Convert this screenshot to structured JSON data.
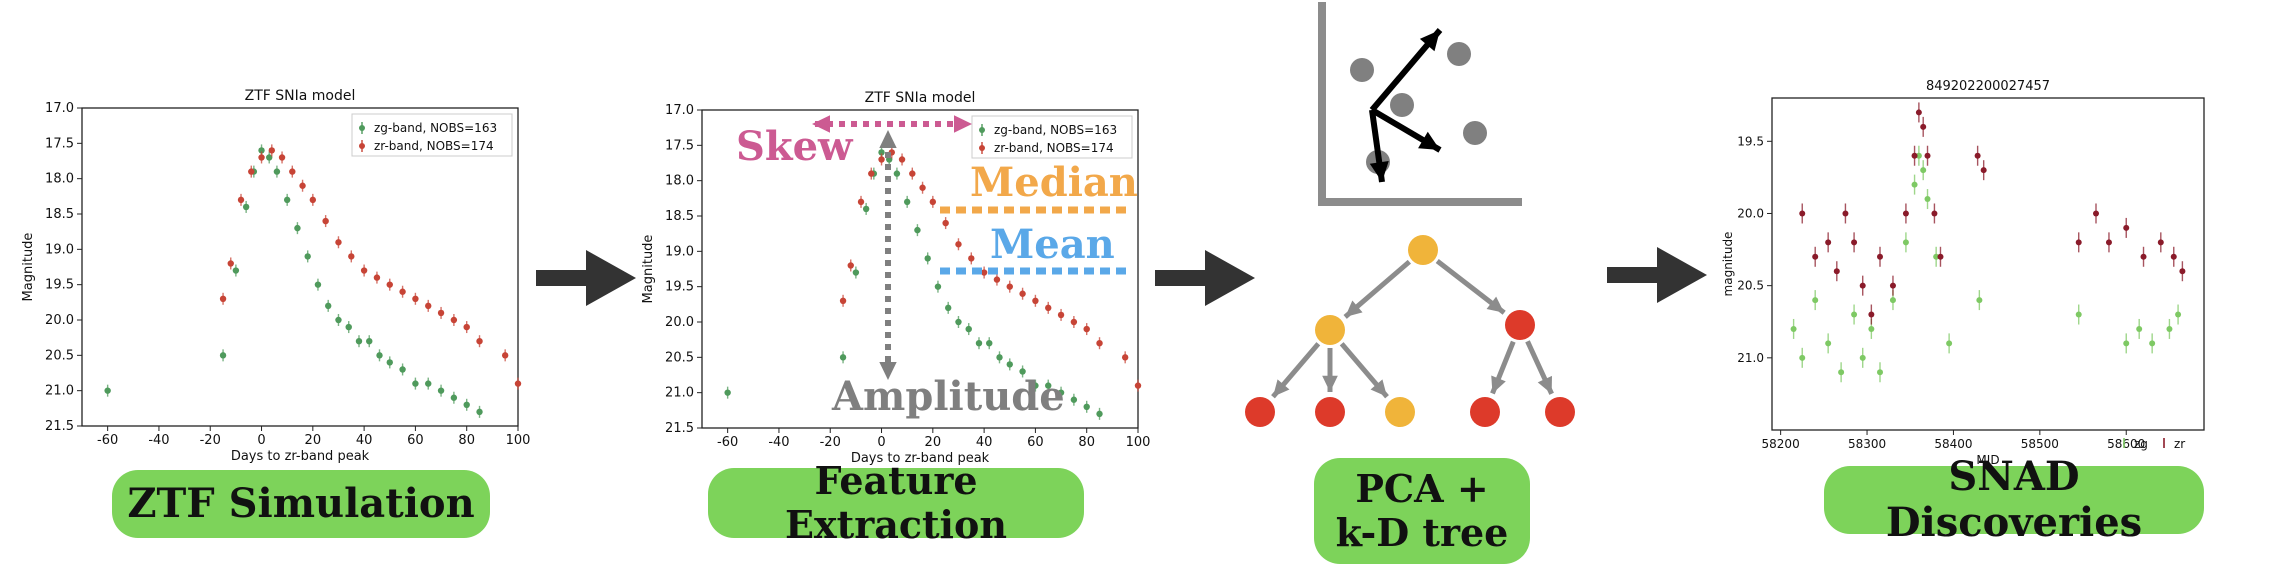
{
  "colors": {
    "green_band": "#4f9a5c",
    "red_band": "#c74436",
    "dark_red": "#8a1b2a",
    "light_green": "#7ec964",
    "skew": "#cc5a92",
    "median": "#f2a84a",
    "mean": "#5aa8e8",
    "amplitude": "#7f7f7f",
    "pill_green": "#7dd35a",
    "node_yellow": "#f0b43a",
    "node_red": "#dd3a2a",
    "arrow_dark": "#333333",
    "gray_line": "#8c8c8c"
  },
  "steps": {
    "simulation_label": "ZTF Simulation",
    "extraction_label": "Feature Extraction",
    "pca_label_line1": "PCA +",
    "pca_label_line2": "k-D tree",
    "snad_label": "SNAD Discoveries"
  },
  "features": {
    "skew": "Skew",
    "median": "Median",
    "mean": "Mean",
    "amplitude": "Amplitude"
  },
  "icons": [
    "right-arrow-icon",
    "scatter-pca-icon",
    "kd-tree-icon"
  ],
  "chart_data": [
    {
      "type": "scatter",
      "title": "ZTF SNIa model",
      "xlabel": "Days to zr-band peak",
      "ylabel": "Magnitude",
      "xlim": [
        -70,
        100
      ],
      "ylim": [
        21.5,
        17.0
      ],
      "y_inverted": true,
      "xticks": [
        -60,
        -40,
        -20,
        0,
        20,
        40,
        60,
        80,
        100
      ],
      "yticks": [
        17.0,
        17.5,
        18.0,
        18.5,
        19.0,
        19.5,
        20.0,
        20.5,
        21.0,
        21.5
      ],
      "legend": "top-right",
      "error_bars": true,
      "series": [
        {
          "name": "zg-band, NOBS=163",
          "color": "#4f9a5c",
          "x": [
            -60,
            -15,
            -10,
            -6,
            -3,
            0,
            3,
            6,
            10,
            14,
            18,
            22,
            26,
            30,
            34,
            38,
            42,
            46,
            50,
            55,
            60,
            65,
            70,
            75,
            80,
            85
          ],
          "y": [
            21.0,
            20.5,
            19.3,
            18.4,
            17.9,
            17.6,
            17.7,
            17.9,
            18.3,
            18.7,
            19.1,
            19.5,
            19.8,
            20.0,
            20.1,
            20.3,
            20.3,
            20.5,
            20.6,
            20.7,
            20.9,
            20.9,
            21.0,
            21.1,
            21.2,
            21.3
          ]
        },
        {
          "name": "zr-band, NOBS=174",
          "color": "#c74436",
          "x": [
            -15,
            -12,
            -8,
            -4,
            0,
            4,
            8,
            12,
            16,
            20,
            25,
            30,
            35,
            40,
            45,
            50,
            55,
            60,
            65,
            70,
            75,
            80,
            85,
            95,
            100
          ],
          "y": [
            19.7,
            19.2,
            18.3,
            17.9,
            17.7,
            17.6,
            17.7,
            17.9,
            18.1,
            18.3,
            18.6,
            18.9,
            19.1,
            19.3,
            19.4,
            19.5,
            19.6,
            19.7,
            19.8,
            19.9,
            20.0,
            20.1,
            20.3,
            20.5,
            20.9
          ]
        }
      ]
    },
    {
      "type": "scatter",
      "title": "ZTF SNIa model",
      "xlabel": "Days to zr-band peak",
      "ylabel": "Magnitude",
      "xlim": [
        -70,
        100
      ],
      "ylim": [
        21.5,
        17.0
      ],
      "y_inverted": true,
      "xticks": [
        -60,
        -40,
        -20,
        0,
        20,
        40,
        60,
        80,
        100
      ],
      "yticks": [
        17.0,
        17.5,
        18.0,
        18.5,
        19.0,
        19.5,
        20.0,
        20.5,
        21.0,
        21.5
      ],
      "legend": "top-right",
      "error_bars": true,
      "annotations": [
        "Skew",
        "Median",
        "Mean",
        "Amplitude"
      ],
      "series": [
        {
          "name": "zg-band, NOBS=163",
          "color": "#4f9a5c",
          "x": [
            -60,
            -15,
            -10,
            -6,
            -3,
            0,
            3,
            6,
            10,
            14,
            18,
            22,
            26,
            30,
            34,
            38,
            42,
            46,
            50,
            55,
            60,
            65,
            70,
            75,
            80,
            85
          ],
          "y": [
            21.0,
            20.5,
            19.3,
            18.4,
            17.9,
            17.6,
            17.7,
            17.9,
            18.3,
            18.7,
            19.1,
            19.5,
            19.8,
            20.0,
            20.1,
            20.3,
            20.3,
            20.5,
            20.6,
            20.7,
            20.9,
            20.9,
            21.0,
            21.1,
            21.2,
            21.3
          ]
        },
        {
          "name": "zr-band, NOBS=174",
          "color": "#c74436",
          "x": [
            -15,
            -12,
            -8,
            -4,
            0,
            4,
            8,
            12,
            16,
            20,
            25,
            30,
            35,
            40,
            45,
            50,
            55,
            60,
            65,
            70,
            75,
            80,
            85,
            95,
            100
          ],
          "y": [
            19.7,
            19.2,
            18.3,
            17.9,
            17.7,
            17.6,
            17.7,
            17.9,
            18.1,
            18.3,
            18.6,
            18.9,
            19.1,
            19.3,
            19.4,
            19.5,
            19.6,
            19.7,
            19.8,
            19.9,
            20.0,
            20.1,
            20.3,
            20.5,
            20.9
          ]
        }
      ]
    },
    {
      "type": "scatter",
      "title": "849202200027457",
      "xlabel": "MJD",
      "ylabel": "magnitude",
      "xlim": [
        58190,
        58690
      ],
      "ylim": [
        21.5,
        19.2
      ],
      "y_inverted": true,
      "xticks": [
        58200,
        58300,
        58400,
        58500,
        58600
      ],
      "yticks": [
        19.5,
        20.0,
        20.5,
        21.0
      ],
      "legend": "bottom-right",
      "error_bars": true,
      "series": [
        {
          "name": "zg",
          "color": "#7ec964",
          "x": [
            58215,
            58225,
            58240,
            58255,
            58270,
            58285,
            58295,
            58305,
            58315,
            58330,
            58345,
            58355,
            58360,
            58365,
            58370,
            58380,
            58395,
            58430,
            58545,
            58600,
            58615,
            58630,
            58650,
            58660
          ],
          "y": [
            20.8,
            21.0,
            20.6,
            20.9,
            21.1,
            20.7,
            21.0,
            20.8,
            21.1,
            20.6,
            20.2,
            19.8,
            19.6,
            19.7,
            19.9,
            20.3,
            20.9,
            20.6,
            20.7,
            20.9,
            20.8,
            20.9,
            20.8,
            20.7
          ]
        },
        {
          "name": "zr",
          "color": "#8a1b2a",
          "x": [
            58225,
            58240,
            58255,
            58265,
            58275,
            58285,
            58295,
            58305,
            58315,
            58330,
            58345,
            58355,
            58360,
            58365,
            58370,
            58378,
            58385,
            58428,
            58435,
            58545,
            58565,
            58580,
            58600,
            58620,
            58640,
            58655,
            58665
          ],
          "y": [
            20.0,
            20.3,
            20.2,
            20.4,
            20.0,
            20.2,
            20.5,
            20.7,
            20.3,
            20.5,
            20.0,
            19.6,
            19.3,
            19.4,
            19.6,
            20.0,
            20.3,
            19.6,
            19.7,
            20.2,
            20.0,
            20.2,
            20.1,
            20.3,
            20.2,
            20.3,
            20.4
          ]
        }
      ]
    }
  ]
}
